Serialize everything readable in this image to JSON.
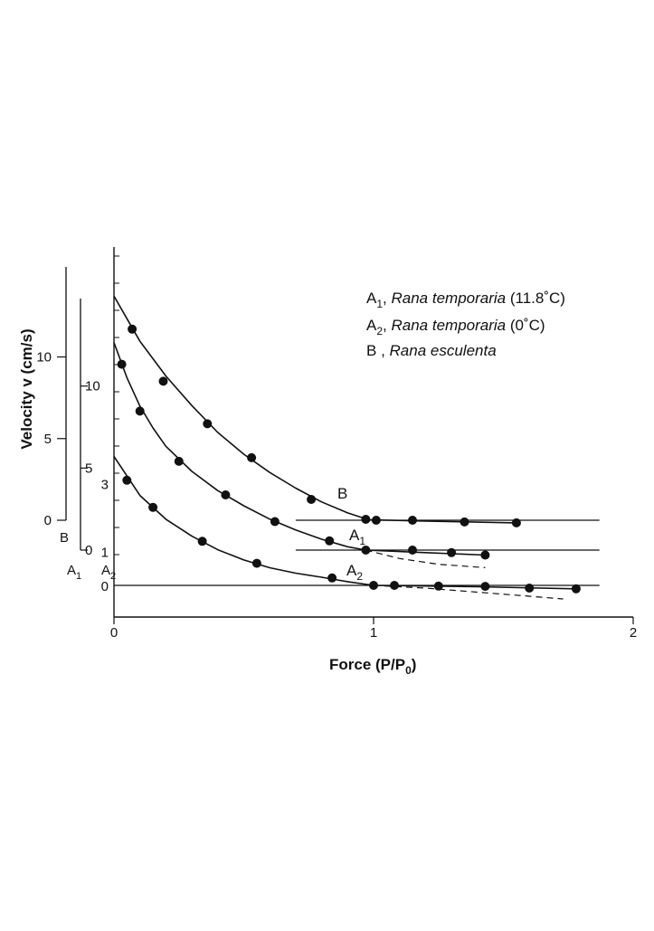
{
  "chart_data": {
    "type": "line",
    "title": "",
    "xlabel": "Force (P/P",
    "xlabel_sub": "0",
    "xlabel_close": ")",
    "ylabel": "Velocity v (cm/s)",
    "xlim": [
      0,
      2
    ],
    "x_ticks": [
      "0",
      "1",
      "2"
    ],
    "grid": false,
    "legend_position": "top-right",
    "legend": [
      {
        "key": "A",
        "sub": "1",
        "sep": ",",
        "species": "Rana temporaria",
        "cond": "(11.8˚C)"
      },
      {
        "key": "A",
        "sub": "2",
        "sep": ",",
        "species": "Rana temporaria",
        "cond": "(0˚C)"
      },
      {
        "key": "B",
        "sub": "",
        "sep": " ,",
        "species": "Rana esculenta",
        "cond": ""
      }
    ],
    "scales": {
      "B": {
        "label": "B",
        "ticks": [
          "10",
          "5",
          "0"
        ]
      },
      "A1": {
        "label": "A",
        "sub": "1",
        "ticks": [
          "10",
          "5",
          "0"
        ]
      },
      "A2": {
        "label": "A",
        "sub": "2",
        "ticks": [
          "3",
          "1",
          "0"
        ]
      }
    },
    "series": [
      {
        "name": "B",
        "label": "B",
        "label_sub": "",
        "scale": "B",
        "baseline_x": [
          0.7,
          1.87
        ],
        "points": [
          [
            0.07,
            11.0
          ],
          [
            0.19,
            8.0
          ],
          [
            0.36,
            5.55
          ],
          [
            0.53,
            3.6
          ],
          [
            0.76,
            1.2
          ],
          [
            0.97,
            0.05
          ],
          [
            1.01,
            0.0
          ],
          [
            1.15,
            0.0
          ],
          [
            1.35,
            -0.1
          ],
          [
            1.55,
            -0.15
          ]
        ],
        "curve": [
          [
            0.0,
            12.9
          ],
          [
            0.1,
            10.3
          ],
          [
            0.2,
            8.3
          ],
          [
            0.3,
            6.6
          ],
          [
            0.4,
            5.05
          ],
          [
            0.5,
            3.8
          ],
          [
            0.6,
            2.75
          ],
          [
            0.7,
            1.85
          ],
          [
            0.8,
            1.05
          ],
          [
            0.9,
            0.42
          ],
          [
            0.98,
            0.03
          ],
          [
            1.2,
            -0.05
          ],
          [
            1.55,
            -0.15
          ]
        ],
        "extension": [
          [
            0.98,
            0.03
          ],
          [
            1.55,
            0.1
          ]
        ]
      },
      {
        "name": "A1",
        "label": "A",
        "label_sub": "1",
        "scale": "A1",
        "baseline_x": [
          0.7,
          1.87
        ],
        "points": [
          [
            0.03,
            11.1
          ],
          [
            0.1,
            8.3
          ],
          [
            0.25,
            5.3
          ],
          [
            0.43,
            3.3
          ],
          [
            0.62,
            1.7
          ],
          [
            0.83,
            0.55
          ],
          [
            0.97,
            0.0
          ],
          [
            1.15,
            0.0
          ],
          [
            1.3,
            -0.15
          ],
          [
            1.43,
            -0.3
          ]
        ],
        "curve": [
          [
            0.0,
            12.4
          ],
          [
            0.05,
            10.3
          ],
          [
            0.1,
            8.6
          ],
          [
            0.15,
            7.3
          ],
          [
            0.2,
            6.2
          ],
          [
            0.3,
            4.7
          ],
          [
            0.4,
            3.55
          ],
          [
            0.5,
            2.65
          ],
          [
            0.6,
            1.85
          ],
          [
            0.7,
            1.2
          ],
          [
            0.8,
            0.65
          ],
          [
            0.9,
            0.2
          ],
          [
            0.97,
            0.0
          ],
          [
            1.2,
            -0.15
          ],
          [
            1.43,
            -0.3
          ]
        ],
        "dashed": [
          [
            0.97,
            0.0
          ],
          [
            1.1,
            -0.5
          ],
          [
            1.25,
            -0.85
          ],
          [
            1.43,
            -1.05
          ]
        ]
      },
      {
        "name": "A2",
        "label": "A",
        "label_sub": "2",
        "scale": "A2",
        "baseline_x": [
          0.0,
          1.87
        ],
        "points": [
          [
            0.05,
            3.1
          ],
          [
            0.15,
            2.3
          ],
          [
            0.34,
            1.3
          ],
          [
            0.55,
            0.65
          ],
          [
            0.84,
            0.22
          ],
          [
            1.0,
            0.0
          ],
          [
            1.08,
            0.0
          ],
          [
            1.25,
            -0.02
          ],
          [
            1.43,
            -0.03
          ],
          [
            1.6,
            -0.08
          ],
          [
            1.78,
            -0.1
          ]
        ],
        "curve": [
          [
            0.0,
            3.8
          ],
          [
            0.1,
            2.65
          ],
          [
            0.2,
            1.95
          ],
          [
            0.3,
            1.45
          ],
          [
            0.4,
            1.05
          ],
          [
            0.5,
            0.75
          ],
          [
            0.6,
            0.52
          ],
          [
            0.7,
            0.36
          ],
          [
            0.8,
            0.24
          ],
          [
            0.9,
            0.11
          ],
          [
            1.0,
            0.0
          ],
          [
            1.4,
            -0.04
          ],
          [
            1.78,
            -0.1
          ]
        ],
        "dashed": [
          [
            1.0,
            0.0
          ],
          [
            1.2,
            -0.08
          ],
          [
            1.4,
            -0.2
          ],
          [
            1.6,
            -0.32
          ],
          [
            1.73,
            -0.4
          ]
        ]
      }
    ]
  }
}
